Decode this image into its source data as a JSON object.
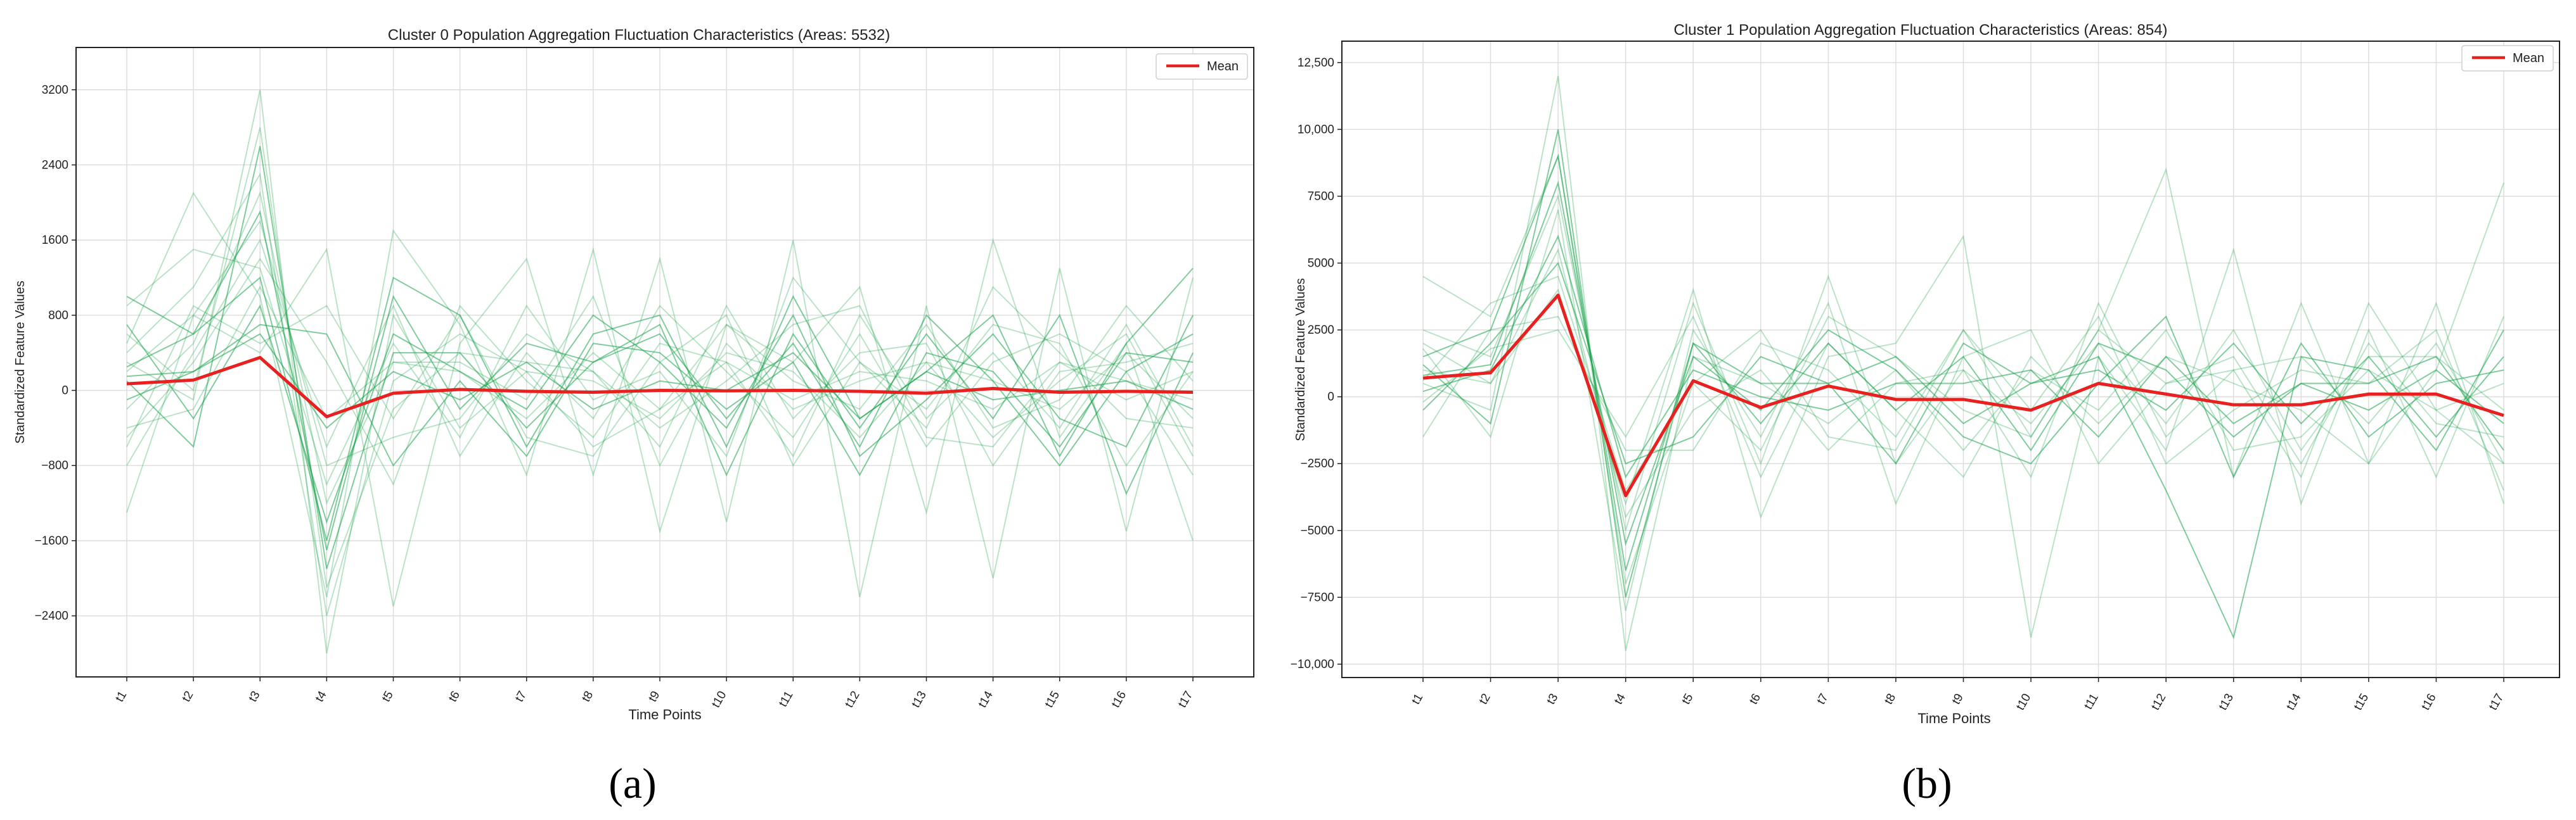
{
  "chart_data": [
    {
      "type": "line",
      "title": "Cluster 0 Population Aggregation Fluctuation Characteristics (Areas: 5532)",
      "xlabel": "Time Points",
      "ylabel": "Standardized Feature Values",
      "categories": [
        "t1",
        "t2",
        "t3",
        "t4",
        "t5",
        "t6",
        "t7",
        "t8",
        "t9",
        "t10",
        "t11",
        "t12",
        "t13",
        "t14",
        "t15",
        "t16",
        "t17"
      ],
      "ylim": [
        -3050,
        3650
      ],
      "yticks": [
        -2400,
        -1600,
        -800,
        0,
        800,
        1600,
        2400,
        3200
      ],
      "ytick_labels": [
        "−2400",
        "−1600",
        "−800",
        "0",
        "800",
        "1600",
        "2400",
        "3200"
      ],
      "grid": true,
      "legend": {
        "position": "top-right",
        "entries": [
          "Mean"
        ]
      },
      "mean_color": "#e8201f",
      "sample_color": "#1aa34a",
      "series": [
        {
          "name": "Mean",
          "values": [
            70,
            110,
            350,
            -280,
            -30,
            10,
            -10,
            -20,
            0,
            -5,
            0,
            -10,
            -30,
            20,
            -20,
            -10,
            -20
          ]
        }
      ],
      "sample_series": [
        [
          150,
          200,
          600,
          -400,
          200,
          -100,
          300,
          -200,
          100,
          0,
          400,
          -300,
          200,
          -100,
          0,
          100,
          -200
        ],
        [
          -200,
          500,
          2100,
          -1200,
          300,
          200,
          -300,
          400,
          -200,
          300,
          -100,
          200,
          100,
          -200,
          300,
          -100,
          200
        ],
        [
          300,
          -100,
          3200,
          -2800,
          800,
          -400,
          200,
          100,
          -300,
          400,
          200,
          -500,
          300,
          100,
          -200,
          400,
          -300
        ],
        [
          1000,
          600,
          1200,
          -1600,
          1200,
          800,
          -600,
          600,
          800,
          -600,
          1000,
          -300,
          200,
          800,
          -700,
          500,
          1300
        ],
        [
          -1300,
          800,
          400,
          1500,
          -2300,
          500,
          1400,
          -900,
          1400,
          -1400,
          1600,
          -2200,
          900,
          -2000,
          1300,
          -1500,
          1200
        ],
        [
          500,
          2100,
          1000,
          -2200,
          1700,
          700,
          -900,
          1500,
          -1500,
          700,
          300,
          1100,
          -1300,
          1600,
          -500,
          500,
          -1600
        ],
        [
          100,
          -600,
          2600,
          -1900,
          400,
          400,
          -400,
          300,
          700,
          -900,
          600,
          -400,
          600,
          -300,
          800,
          -1100,
          400
        ],
        [
          -500,
          300,
          1400,
          300,
          -1000,
          900,
          100,
          -500,
          500,
          300,
          -700,
          800,
          -300,
          400,
          -400,
          700,
          -600
        ],
        [
          200,
          800,
          1800,
          -800,
          -500,
          -300,
          600,
          200,
          -600,
          900,
          -300,
          400,
          500,
          -800,
          200,
          300,
          500
        ],
        [
          700,
          -300,
          900,
          -1400,
          600,
          200,
          -200,
          800,
          300,
          -400,
          800,
          -700,
          -100,
          600,
          -300,
          -600,
          800
        ],
        [
          -800,
          400,
          1600,
          -600,
          900,
          -700,
          400,
          -300,
          900,
          200,
          -500,
          600,
          -600,
          300,
          600,
          200,
          -900
        ],
        [
          400,
          1100,
          2300,
          -2400,
          100,
          600,
          200,
          -600,
          -200,
          700,
          100,
          -200,
          700,
          -400,
          -100,
          900,
          100
        ],
        [
          -100,
          200,
          700,
          600,
          -800,
          100,
          -700,
          500,
          400,
          -200,
          300,
          -900,
          400,
          200,
          -600,
          400,
          300
        ],
        [
          900,
          1500,
          1300,
          -1000,
          500,
          -500,
          900,
          -100,
          200,
          -700,
          1200,
          300,
          -400,
          1100,
          400,
          -300,
          -400
        ],
        [
          -400,
          -200,
          1100,
          -300,
          300,
          300,
          -100,
          1000,
          -800,
          500,
          -200,
          100,
          300,
          -500,
          100,
          600,
          -700
        ],
        [
          250,
          600,
          1900,
          -1700,
          1000,
          -200,
          500,
          300,
          600,
          -300,
          500,
          -600,
          800,
          100,
          -800,
          200,
          600
        ],
        [
          -600,
          900,
          500,
          900,
          -300,
          800,
          -500,
          -700,
          300,
          800,
          -800,
          300,
          -200,
          700,
          500,
          -800,
          200
        ],
        [
          600,
          0,
          2800,
          -2100,
          -200,
          400,
          300,
          200,
          -400,
          100,
          700,
          900,
          -500,
          -600,
          300,
          100,
          -100
        ]
      ]
    },
    {
      "type": "line",
      "title": "Cluster 1 Population Aggregation Fluctuation Characteristics (Areas: 854)",
      "xlabel": "Time Points",
      "ylabel": "Standardized Feature Values",
      "categories": [
        "t1",
        "t2",
        "t3",
        "t4",
        "t5",
        "t6",
        "t7",
        "t8",
        "t9",
        "t10",
        "t11",
        "t12",
        "t13",
        "t14",
        "t15",
        "t16",
        "t17"
      ],
      "ylim": [
        -10500,
        13300
      ],
      "yticks": [
        -10000,
        -7500,
        -5000,
        -2500,
        0,
        2500,
        5000,
        7500,
        10000,
        12500
      ],
      "ytick_labels": [
        "−10,000",
        "−7500",
        "−5000",
        "−2500",
        "0",
        "2500",
        "5000",
        "7500",
        "10,000",
        "12,500"
      ],
      "grid": true,
      "legend": {
        "position": "top-right",
        "entries": [
          "Mean"
        ]
      },
      "mean_color": "#e8201f",
      "sample_color": "#1aa34a",
      "series": [
        {
          "name": "Mean",
          "values": [
            700,
            900,
            3800,
            -3700,
            600,
            -400,
            400,
            -100,
            -100,
            -500,
            500,
            100,
            -300,
            -300,
            100,
            100,
            -700
          ]
        }
      ],
      "sample_series": [
        [
          1500,
          2500,
          9000,
          -6500,
          2000,
          -1000,
          2000,
          -500,
          1500,
          -2000,
          2000,
          1000,
          -1500,
          500,
          500,
          1500,
          -2000
        ],
        [
          500,
          -500,
          12000,
          -9500,
          1500,
          500,
          -1000,
          1000,
          -2000,
          1000,
          -500,
          2500,
          -2000,
          -1500,
          1000,
          -500,
          500
        ],
        [
          2500,
          1500,
          7500,
          -5000,
          3500,
          -2500,
          4500,
          -2500,
          1000,
          -3000,
          3500,
          -1500,
          1000,
          1500,
          -1000,
          2000,
          -2500
        ],
        [
          -500,
          2000,
          5000,
          -2500,
          -1500,
          1500,
          500,
          1500,
          -1000,
          500,
          1000,
          -500,
          2000,
          -1000,
          1500,
          -1500,
          1500
        ],
        [
          4500,
          3000,
          9000,
          -7000,
          500,
          2500,
          -1500,
          -2000,
          2500,
          -1500,
          2500,
          8500,
          -3000,
          3500,
          -2500,
          1000,
          8000
        ],
        [
          1000,
          500,
          4000,
          -4000,
          4000,
          -4500,
          1500,
          2000,
          6000,
          -9000,
          1500,
          -2000,
          5500,
          -4000,
          2500,
          -3000,
          3000
        ],
        [
          200,
          1000,
          6000,
          -3000,
          1000,
          0,
          -500,
          500,
          500,
          1000,
          -1500,
          1500,
          -1000,
          500,
          -500,
          1000,
          -1000
        ],
        [
          1800,
          -1500,
          7000,
          -8000,
          2500,
          -1500,
          3500,
          -4000,
          1500,
          2500,
          -2500,
          500,
          1500,
          -2500,
          2000,
          -1000,
          -1500
        ],
        [
          -1500,
          2500,
          3000,
          -2000,
          -2000,
          2000,
          1000,
          -1500,
          2500,
          -500,
          3000,
          -2500,
          -500,
          1000,
          500,
          2500,
          -3500
        ],
        [
          800,
          1200,
          8000,
          -5500,
          1500,
          -500,
          2500,
          1000,
          -1500,
          -2500,
          500,
          3000,
          -3000,
          2000,
          -1500,
          500,
          1000
        ],
        [
          2000,
          500,
          5500,
          -4500,
          -500,
          1000,
          -2000,
          500,
          1000,
          -1000,
          2000,
          -1000,
          2500,
          -2000,
          1500,
          1500,
          -500
        ],
        [
          -200,
          1800,
          2500,
          -1500,
          3000,
          -3000,
          2000,
          -500,
          -3000,
          1500,
          -1000,
          1500,
          500,
          -500,
          -2500,
          3500,
          -4000
        ],
        [
          1200,
          -1000,
          10000,
          -7500,
          2000,
          500,
          500,
          -2500,
          2000,
          500,
          1500,
          -3500,
          -9000,
          1500,
          1000,
          -2000,
          2500
        ],
        [
          600,
          3500,
          4500,
          -3500,
          500,
          -2000,
          3000,
          1500,
          -500,
          -1500,
          2500,
          500,
          1000,
          -3000,
          3500,
          -500,
          -2500
        ]
      ]
    }
  ],
  "captions": [
    "(a)",
    "(b)"
  ]
}
